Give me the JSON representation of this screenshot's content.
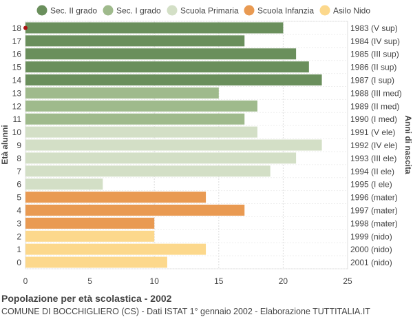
{
  "chart_data": {
    "type": "bar",
    "orientation": "horizontal",
    "title": "Popolazione per età scolastica - 2002",
    "subtitle": "COMUNE DI BOCCHIGLIERO (CS) - Dati ISTAT 1° gennaio 2002 - Elaborazione TUTTITALIA.IT",
    "ylabel_left": "Età alunni",
    "ylabel_right": "Anni di nascita",
    "xlim": [
      0,
      25
    ],
    "xticks": [
      "0",
      "5",
      "10",
      "15",
      "20",
      "25"
    ],
    "grid": true,
    "legend_position": "top",
    "legend": [
      {
        "name": "Sec. II grado",
        "color": "#6a8f5c"
      },
      {
        "name": "Sec. I grado",
        "color": "#9fba8c"
      },
      {
        "name": "Scuola Primaria",
        "color": "#d3dfc6"
      },
      {
        "name": "Scuola Infanzia",
        "color": "#e99a52"
      },
      {
        "name": "Asilo Nido",
        "color": "#fcd88c"
      }
    ],
    "rows": [
      {
        "age": "18",
        "birth": "1983 (V sup)",
        "value": 20,
        "group": 0
      },
      {
        "age": "17",
        "birth": "1984 (IV sup)",
        "value": 17,
        "group": 0
      },
      {
        "age": "16",
        "birth": "1985 (III sup)",
        "value": 21,
        "group": 0
      },
      {
        "age": "15",
        "birth": "1986 (II sup)",
        "value": 22,
        "group": 0
      },
      {
        "age": "14",
        "birth": "1987 (I sup)",
        "value": 23,
        "group": 0
      },
      {
        "age": "13",
        "birth": "1988 (III med)",
        "value": 15,
        "group": 1
      },
      {
        "age": "12",
        "birth": "1989 (II med)",
        "value": 18,
        "group": 1
      },
      {
        "age": "11",
        "birth": "1990 (I med)",
        "value": 17,
        "group": 1
      },
      {
        "age": "10",
        "birth": "1991 (V ele)",
        "value": 18,
        "group": 2
      },
      {
        "age": "9",
        "birth": "1992 (IV ele)",
        "value": 23,
        "group": 2
      },
      {
        "age": "8",
        "birth": "1993 (III ele)",
        "value": 21,
        "group": 2
      },
      {
        "age": "7",
        "birth": "1994 (II ele)",
        "value": 19,
        "group": 2
      },
      {
        "age": "6",
        "birth": "1995 (I ele)",
        "value": 6,
        "group": 2
      },
      {
        "age": "5",
        "birth": "1996 (mater)",
        "value": 14,
        "group": 3
      },
      {
        "age": "4",
        "birth": "1997 (mater)",
        "value": 17,
        "group": 3
      },
      {
        "age": "3",
        "birth": "1998 (mater)",
        "value": 10,
        "group": 3
      },
      {
        "age": "2",
        "birth": "1999 (nido)",
        "value": 10,
        "group": 4
      },
      {
        "age": "1",
        "birth": "2000 (nido)",
        "value": 14,
        "group": 4
      },
      {
        "age": "0",
        "birth": "2001 (nido)",
        "value": 11,
        "group": 4
      }
    ]
  }
}
